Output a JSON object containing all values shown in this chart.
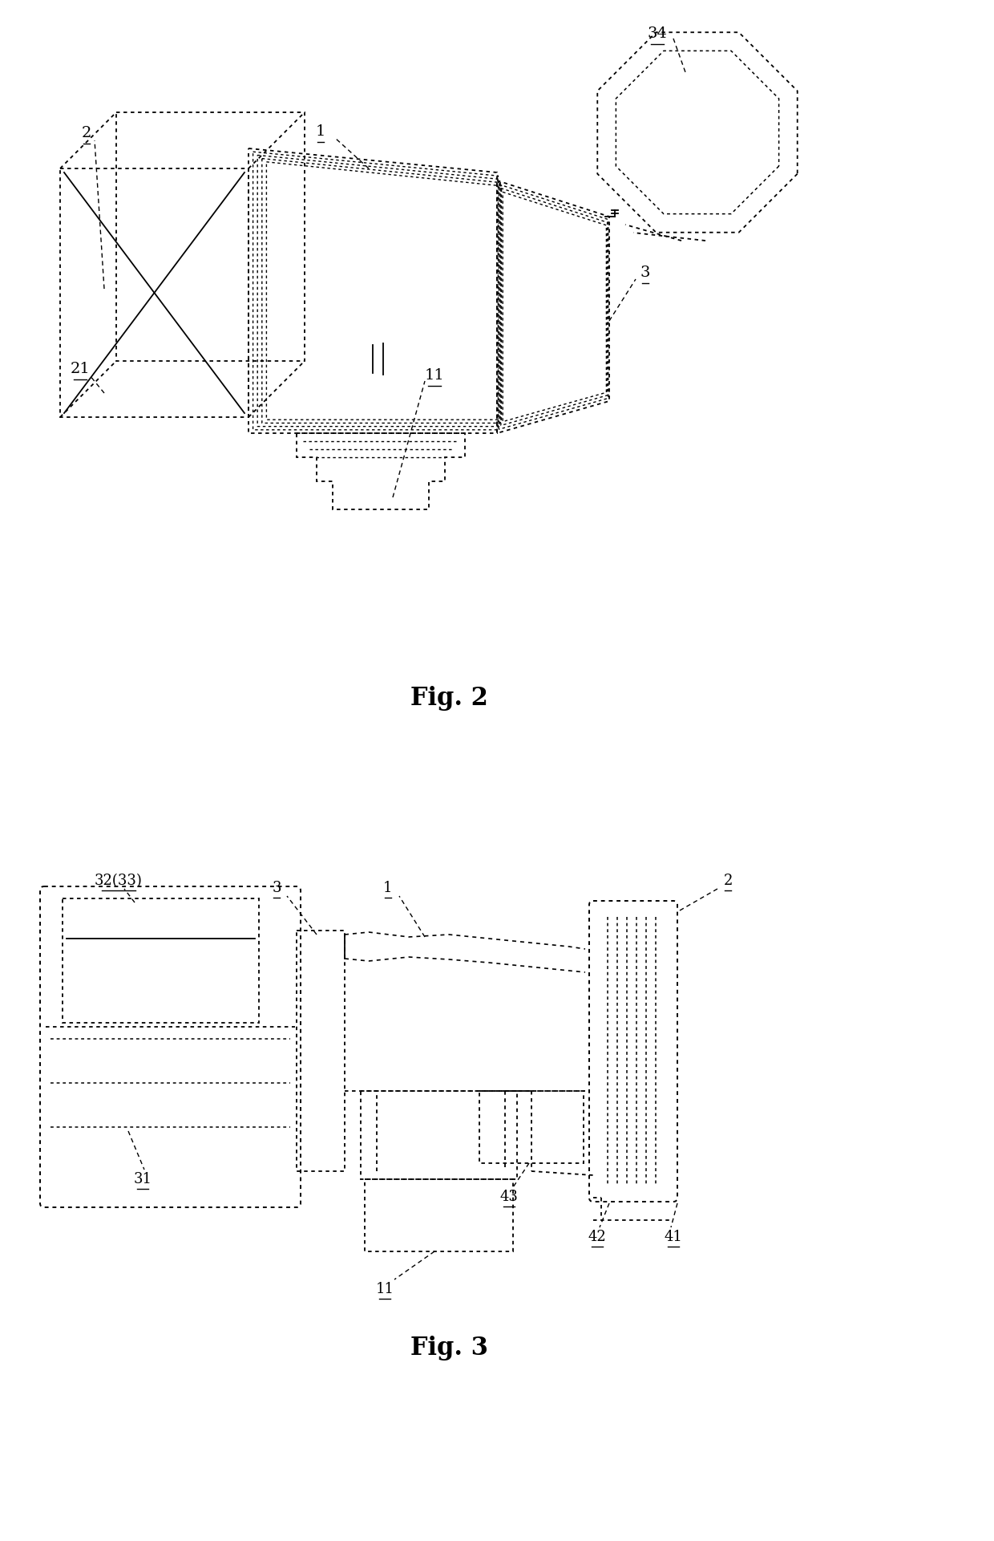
{
  "background_color": "#ffffff",
  "line_color": "#000000",
  "fig2_title": "Fig. 2",
  "fig3_title": "Fig. 3",
  "title_fontsize": 22,
  "label_fontsize": 14
}
